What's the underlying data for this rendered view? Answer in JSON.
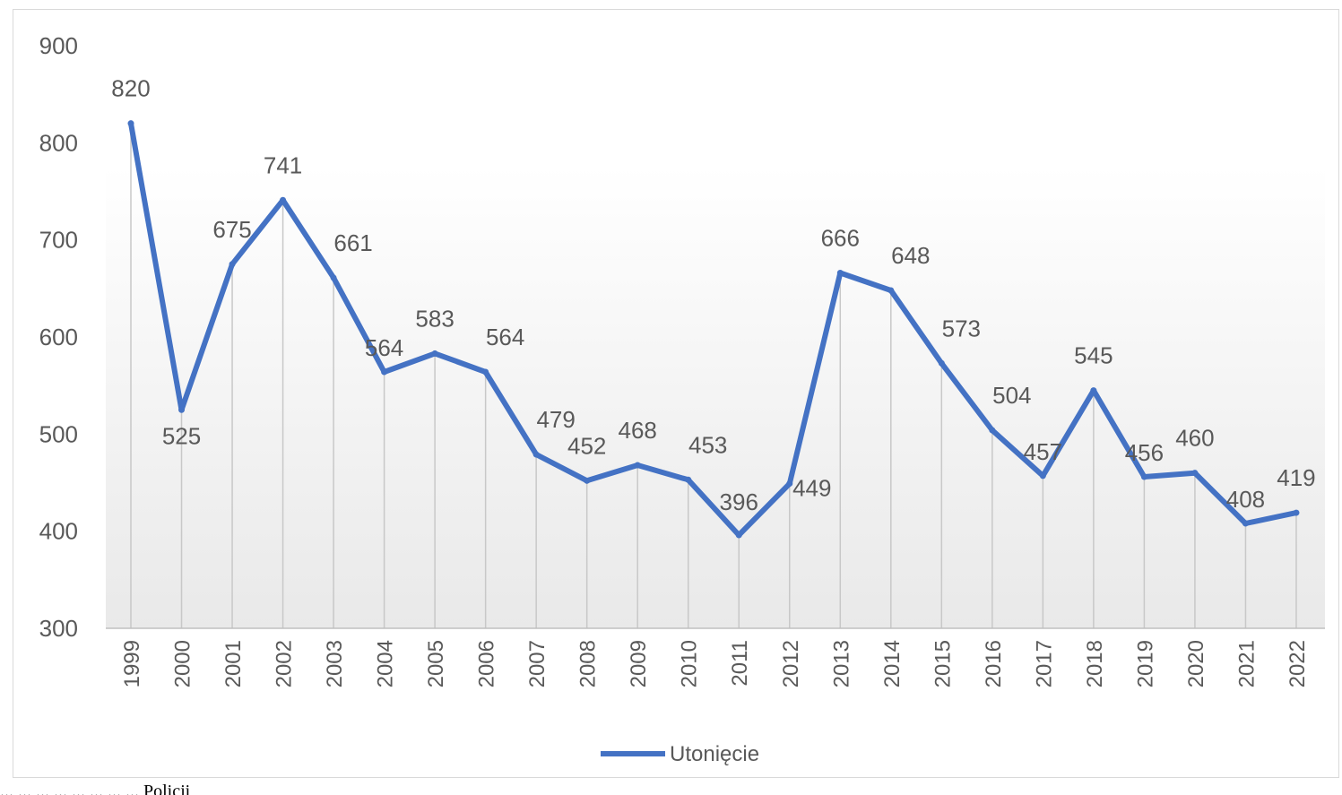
{
  "chart_data": {
    "type": "line",
    "title": "",
    "xlabel": "",
    "ylabel": "",
    "ylim": [
      300,
      900
    ],
    "yticks": [
      300,
      400,
      500,
      600,
      700,
      800,
      900
    ],
    "categories": [
      "1999",
      "2000",
      "2001",
      "2002",
      "2003",
      "2004",
      "2005",
      "2006",
      "2007",
      "2008",
      "2009",
      "2010",
      "2011",
      "2012",
      "2013",
      "2014",
      "2015",
      "2016",
      "2017",
      "2018",
      "2019",
      "2020",
      "2021",
      "2022"
    ],
    "series": [
      {
        "name": "Utonięcie",
        "color": "#4472c4",
        "values": [
          820,
          525,
          675,
          741,
          661,
          564,
          583,
          564,
          479,
          452,
          468,
          453,
          396,
          449,
          666,
          648,
          573,
          504,
          457,
          545,
          456,
          460,
          408,
          419
        ]
      }
    ],
    "data_labels": true,
    "drop_lines": true,
    "grid": false,
    "legend_position": "bottom"
  },
  "caption": "... ... ... ... ... ... ... ... Policji"
}
